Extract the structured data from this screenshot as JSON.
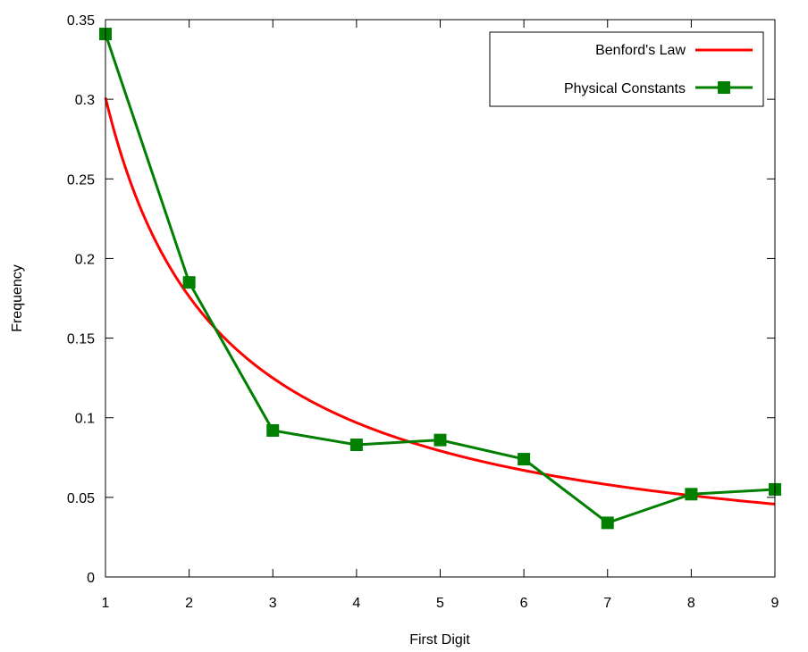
{
  "chart_data": {
    "type": "line",
    "xlabel": "First Digit",
    "ylabel": "Frequency",
    "xlim": [
      1,
      9
    ],
    "ylim": [
      0,
      0.35
    ],
    "xticks": [
      1,
      2,
      3,
      4,
      5,
      6,
      7,
      8,
      9
    ],
    "yticks": [
      0,
      0.05,
      0.1,
      0.15,
      0.2,
      0.25,
      0.3,
      0.35
    ],
    "xtick_labels": [
      "1",
      "2",
      "3",
      "4",
      "5",
      "6",
      "7",
      "8",
      "9"
    ],
    "ytick_labels": [
      "0",
      "0.05",
      "0.1",
      "0.15",
      "0.2",
      "0.25",
      "0.3",
      "0.35"
    ],
    "legend_position": "top-right",
    "series": [
      {
        "name": "Benford's Law",
        "kind": "curve",
        "formula": "log10(1 + 1/x)",
        "color": "#ff0000",
        "markers": false
      },
      {
        "name": "Physical Constants",
        "kind": "points",
        "color": "#007f00",
        "markers": true,
        "x": [
          1,
          2,
          3,
          4,
          5,
          6,
          7,
          8,
          9
        ],
        "y": [
          0.341,
          0.185,
          0.092,
          0.083,
          0.086,
          0.074,
          0.034,
          0.052,
          0.055
        ]
      }
    ]
  }
}
